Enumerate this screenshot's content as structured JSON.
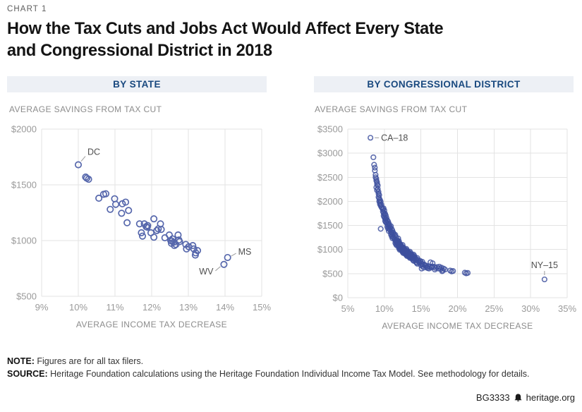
{
  "eyebrow": "CHART 1",
  "title_lines": [
    "How the Tax Cuts and Jobs Act Would Affect Every State",
    "and Congressional District in 2018"
  ],
  "note": {
    "label": "NOTE:",
    "text": " Figures are for all tax filers."
  },
  "source": {
    "label": "SOURCE:",
    "text": " Heritage Foundation calculations using the Heritage Foundation Individual Income Tax Model. See methodology for details."
  },
  "footer": {
    "doc_id": "BG3333",
    "site": "heritage.org",
    "icon": "liberty-bell-icon"
  },
  "colors": {
    "accent_navy": "#19497f",
    "panel_header_bg": "#edf0f5",
    "grid": "#e3e3e3",
    "tick_label": "#9a9a9a",
    "axis_title": "#8c8c8c",
    "point_stroke_state": "#5667ac",
    "point_stroke_district": "#3d4f9e",
    "annotation_text": "#4f4f4f"
  },
  "chart_data": [
    {
      "id": "by-state",
      "type": "scatter",
      "panel_title": "BY STATE",
      "ylabel": "AVERAGE SAVINGS FROM TAX CUT",
      "xlabel": "AVERAGE INCOME TAX DECREASE",
      "xlim": [
        9,
        15
      ],
      "ylim": [
        500,
        2000
      ],
      "grid": true,
      "legend": false,
      "x_tick_values": [
        9,
        10,
        11,
        12,
        13,
        14,
        15
      ],
      "x_tick_labels": [
        "9%",
        "10%",
        "11%",
        "12%",
        "13%",
        "14%",
        "15%"
      ],
      "y_tick_values": [
        500,
        1000,
        1500,
        2000
      ],
      "y_tick_labels": [
        "$500",
        "$1000",
        "$1500",
        "$2000"
      ],
      "points": [
        [
          10.2,
          1570
        ],
        [
          10.23,
          1560
        ],
        [
          10.28,
          1550
        ],
        [
          10.56,
          1380
        ],
        [
          10.69,
          1415
        ],
        [
          10.75,
          1420
        ],
        [
          10.99,
          1375
        ],
        [
          10.87,
          1280
        ],
        [
          11.02,
          1325
        ],
        [
          11.2,
          1330
        ],
        [
          11.29,
          1345
        ],
        [
          11.18,
          1245
        ],
        [
          11.37,
          1270
        ],
        [
          11.33,
          1160
        ],
        [
          11.67,
          1150
        ],
        [
          11.8,
          1150
        ],
        [
          11.85,
          1125
        ],
        [
          11.89,
          1135
        ],
        [
          11.88,
          1120
        ],
        [
          11.72,
          1070
        ],
        [
          11.75,
          1040
        ],
        [
          12.06,
          1195
        ],
        [
          11.98,
          1070
        ],
        [
          12.06,
          1030
        ],
        [
          12.14,
          1090
        ],
        [
          12.18,
          1105
        ],
        [
          12.24,
          1150
        ],
        [
          12.26,
          1100
        ],
        [
          12.36,
          1025
        ],
        [
          12.48,
          1050
        ],
        [
          12.52,
          1000
        ],
        [
          12.57,
          1015
        ],
        [
          12.54,
          975
        ],
        [
          12.6,
          985
        ],
        [
          12.62,
          955
        ],
        [
          12.66,
          965
        ],
        [
          12.72,
          1050
        ],
        [
          12.74,
          1005
        ],
        [
          12.76,
          990
        ],
        [
          12.93,
          965
        ],
        [
          12.95,
          925
        ],
        [
          13.01,
          945
        ],
        [
          13.12,
          955
        ],
        [
          13.15,
          925
        ],
        [
          13.2,
          890
        ],
        [
          13.25,
          910
        ],
        [
          13.19,
          870
        ],
        [
          12.55,
          995
        ]
      ],
      "annotations": [
        {
          "label": "DC",
          "x": 10.0,
          "y": 1680,
          "placement": "above-right"
        },
        {
          "label": "MS",
          "x": 14.07,
          "y": 848,
          "placement": "right-up"
        },
        {
          "label": "WV",
          "x": 13.97,
          "y": 786,
          "placement": "below-left"
        }
      ]
    },
    {
      "id": "by-district",
      "type": "scatter",
      "panel_title": "BY CONGRESSIONAL DISTRICT",
      "ylabel": "AVERAGE SAVINGS FROM TAX CUT",
      "xlabel": "AVERAGE INCOME TAX DECREASE",
      "xlim": [
        5,
        35
      ],
      "ylim": [
        0,
        3500
      ],
      "grid": true,
      "legend": false,
      "x_tick_values": [
        5,
        10,
        15,
        20,
        25,
        30,
        35
      ],
      "x_tick_labels": [
        "5%",
        "10%",
        "15%",
        "20%",
        "25%",
        "30%",
        "35%"
      ],
      "y_tick_values": [
        0,
        500,
        1000,
        1500,
        2000,
        2500,
        3000,
        3500
      ],
      "y_tick_labels": [
        "$0",
        "$500",
        "$1000",
        "$1500",
        "$2000",
        "$2500",
        "$3000",
        "$3500"
      ],
      "points": [
        [
          8.5,
          2915
        ],
        [
          8.6,
          2760
        ],
        [
          8.7,
          2700
        ],
        [
          8.7,
          2640
        ],
        [
          8.8,
          2550
        ],
        [
          8.8,
          2500
        ],
        [
          8.9,
          2470
        ],
        [
          8.9,
          2430
        ],
        [
          9.0,
          2400
        ],
        [
          9.0,
          2360
        ],
        [
          9.1,
          2330
        ],
        [
          8.9,
          2290
        ],
        [
          9.1,
          2260
        ],
        [
          9.0,
          2230
        ],
        [
          9.2,
          2200
        ],
        [
          9.2,
          2160
        ],
        [
          9.3,
          2130
        ],
        [
          9.2,
          2090
        ],
        [
          9.3,
          2060
        ],
        [
          9.4,
          2030
        ],
        [
          9.3,
          2000
        ],
        [
          9.4,
          1970
        ],
        [
          9.5,
          1995
        ],
        [
          9.4,
          1940
        ],
        [
          9.5,
          1910
        ],
        [
          9.6,
          1880
        ],
        [
          9.6,
          1930
        ],
        [
          9.7,
          1860
        ],
        [
          9.5,
          1430
        ],
        [
          9.8,
          1830
        ],
        [
          9.9,
          1855
        ],
        [
          9.8,
          1790
        ],
        [
          9.9,
          1760
        ],
        [
          10.0,
          1810
        ],
        [
          10.0,
          1730
        ],
        [
          9.9,
          1700
        ],
        [
          10.1,
          1745
        ],
        [
          10.0,
          1670
        ],
        [
          10.1,
          1645
        ],
        [
          10.2,
          1705
        ],
        [
          10.2,
          1625
        ],
        [
          10.1,
          1595
        ],
        [
          10.2,
          1565
        ],
        [
          10.3,
          1655
        ],
        [
          10.4,
          1605
        ],
        [
          10.3,
          1565
        ],
        [
          10.4,
          1535
        ],
        [
          10.5,
          1585
        ],
        [
          10.5,
          1505
        ],
        [
          10.6,
          1545
        ],
        [
          10.4,
          1475
        ],
        [
          10.6,
          1465
        ],
        [
          10.7,
          1505
        ],
        [
          10.5,
          1435
        ],
        [
          10.7,
          1425
        ],
        [
          10.6,
          1385
        ],
        [
          10.8,
          1455
        ],
        [
          10.9,
          1485
        ],
        [
          10.8,
          1405
        ],
        [
          10.9,
          1365
        ],
        [
          11.0,
          1425
        ],
        [
          11.0,
          1345
        ],
        [
          11.1,
          1395
        ],
        [
          10.9,
          1315
        ],
        [
          11.1,
          1305
        ],
        [
          11.2,
          1355
        ],
        [
          11.0,
          1275
        ],
        [
          11.2,
          1265
        ],
        [
          11.1,
          1235
        ],
        [
          11.3,
          1325
        ],
        [
          11.4,
          1285
        ],
        [
          11.3,
          1245
        ],
        [
          11.5,
          1305
        ],
        [
          11.4,
          1215
        ],
        [
          11.5,
          1185
        ],
        [
          11.6,
          1255
        ],
        [
          11.6,
          1165
        ],
        [
          11.5,
          1135
        ],
        [
          11.7,
          1205
        ],
        [
          11.7,
          1145
        ],
        [
          11.6,
          1105
        ],
        [
          11.7,
          1085
        ],
        [
          11.8,
          1185
        ],
        [
          11.9,
          1155
        ],
        [
          11.8,
          1115
        ],
        [
          12.0,
          1175
        ],
        [
          11.9,
          1085
        ],
        [
          12.0,
          1055
        ],
        [
          12.1,
          1125
        ],
        [
          12.0,
          1025
        ],
        [
          12.1,
          1065
        ],
        [
          12.2,
          1105
        ],
        [
          12.1,
          995
        ],
        [
          12.2,
          1035
        ],
        [
          11.9,
          1230
        ],
        [
          12.3,
          1085
        ],
        [
          12.4,
          1055
        ],
        [
          12.3,
          1015
        ],
        [
          12.5,
          1095
        ],
        [
          12.4,
          975
        ],
        [
          12.5,
          1005
        ],
        [
          12.6,
          1045
        ],
        [
          12.5,
          945
        ],
        [
          12.6,
          965
        ],
        [
          12.7,
          1015
        ],
        [
          12.6,
          925
        ],
        [
          12.7,
          955
        ],
        [
          12.8,
          1005
        ],
        [
          12.9,
          975
        ],
        [
          12.8,
          935
        ],
        [
          13.0,
          1015
        ],
        [
          12.9,
          905
        ],
        [
          13.0,
          945
        ],
        [
          13.1,
          985
        ],
        [
          13.0,
          885
        ],
        [
          13.1,
          915
        ],
        [
          13.2,
          955
        ],
        [
          13.1,
          865
        ],
        [
          13.2,
          895
        ],
        [
          13.3,
          945
        ],
        [
          13.4,
          915
        ],
        [
          13.3,
          875
        ],
        [
          13.5,
          955
        ],
        [
          13.4,
          845
        ],
        [
          13.5,
          885
        ],
        [
          13.6,
          925
        ],
        [
          13.5,
          825
        ],
        [
          13.6,
          855
        ],
        [
          13.7,
          895
        ],
        [
          13.7,
          835
        ],
        [
          13.8,
          885
        ],
        [
          13.9,
          855
        ],
        [
          13.8,
          815
        ],
        [
          14.0,
          895
        ],
        [
          13.9,
          785
        ],
        [
          14.0,
          825
        ],
        [
          14.1,
          865
        ],
        [
          14.0,
          765
        ],
        [
          14.1,
          795
        ],
        [
          14.2,
          835
        ],
        [
          14.3,
          805
        ],
        [
          14.4,
          775
        ],
        [
          14.3,
          745
        ],
        [
          14.5,
          825
        ],
        [
          14.4,
          725
        ],
        [
          14.6,
          785
        ],
        [
          14.5,
          705
        ],
        [
          14.7,
          755
        ],
        [
          14.8,
          725
        ],
        [
          14.9,
          765
        ],
        [
          15.0,
          735
        ],
        [
          15.1,
          705
        ],
        [
          15.0,
          675
        ],
        [
          15.2,
          745
        ],
        [
          15.3,
          695
        ],
        [
          15.2,
          655
        ],
        [
          15.5,
          685
        ],
        [
          15.1,
          605
        ],
        [
          15.4,
          625
        ],
        [
          15.7,
          665
        ],
        [
          15.8,
          635
        ],
        [
          16.0,
          655
        ],
        [
          15.9,
          615
        ],
        [
          16.2,
          645
        ],
        [
          16.1,
          605
        ],
        [
          16.4,
          625
        ],
        [
          16.5,
          645
        ],
        [
          16.3,
          735
        ],
        [
          16.6,
          715
        ],
        [
          16.8,
          645
        ],
        [
          17.0,
          615
        ],
        [
          16.9,
          585
        ],
        [
          17.2,
          635
        ],
        [
          17.4,
          605
        ],
        [
          17.5,
          645
        ],
        [
          17.7,
          595
        ],
        [
          17.8,
          625
        ],
        [
          18.0,
          565
        ],
        [
          18.1,
          605
        ],
        [
          18.3,
          585
        ],
        [
          17.9,
          550
        ],
        [
          19.0,
          565
        ],
        [
          19.2,
          545
        ],
        [
          19.4,
          555
        ],
        [
          21.0,
          520
        ],
        [
          21.2,
          505
        ],
        [
          21.4,
          515
        ],
        [
          11.8,
          1160
        ],
        [
          11.9,
          1120
        ],
        [
          12.0,
          1140
        ],
        [
          12.0,
          1100
        ],
        [
          12.1,
          1090
        ],
        [
          12.1,
          1050
        ],
        [
          12.2,
          1070
        ],
        [
          12.2,
          1010
        ],
        [
          12.3,
          1050
        ],
        [
          12.3,
          1030
        ],
        [
          12.4,
          1020
        ],
        [
          12.4,
          1000
        ],
        [
          12.5,
          980
        ],
        [
          12.5,
          1030
        ],
        [
          12.6,
          990
        ],
        [
          12.6,
          1000
        ],
        [
          12.7,
          980
        ],
        [
          12.7,
          940
        ],
        [
          12.8,
          960
        ],
        [
          12.8,
          985
        ],
        [
          12.9,
          950
        ],
        [
          12.9,
          930
        ],
        [
          13.0,
          965
        ],
        [
          13.0,
          920
        ],
        [
          13.1,
          940
        ],
        [
          13.1,
          900
        ],
        [
          13.2,
          925
        ],
        [
          13.2,
          880
        ],
        [
          13.3,
          905
        ],
        [
          13.3,
          915
        ],
        [
          13.4,
          890
        ],
        [
          13.4,
          870
        ],
        [
          13.5,
          860
        ],
        [
          13.5,
          905
        ],
        [
          13.6,
          875
        ],
        [
          13.6,
          840
        ],
        [
          13.7,
          865
        ],
        [
          13.8,
          850
        ],
        [
          13.9,
          830
        ],
        [
          14.0,
          845
        ]
      ],
      "annotations": [
        {
          "label": "CA–18",
          "x": 8.1,
          "y": 3320,
          "placement": "right"
        },
        {
          "label": "NY–15",
          "x": 31.9,
          "y": 380,
          "placement": "above"
        }
      ]
    }
  ]
}
